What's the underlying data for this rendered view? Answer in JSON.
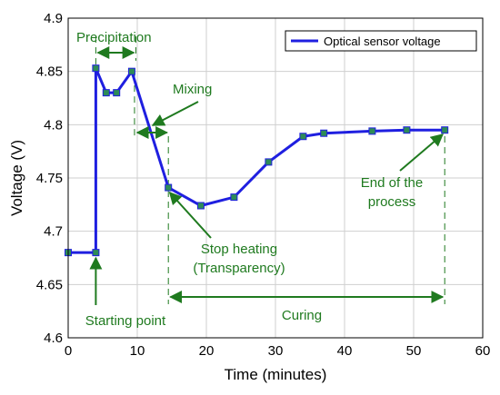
{
  "chart_data": {
    "type": "line",
    "xlabel": "Time (minutes)",
    "ylabel": "Voltage (V)",
    "xlim": [
      0,
      60
    ],
    "ylim": [
      4.6,
      4.9
    ],
    "x_ticks": [
      0,
      10,
      20,
      30,
      40,
      50,
      60
    ],
    "y_ticks": [
      4.6,
      4.65,
      4.7,
      4.75,
      4.8,
      4.85,
      4.9
    ],
    "x_tick_labels": [
      "0",
      "10",
      "20",
      "30",
      "40",
      "50",
      "60"
    ],
    "y_tick_labels": [
      "4.6",
      "4.65",
      "4.7",
      "4.75",
      "4.8",
      "4.85",
      "4.9"
    ],
    "grid": true,
    "legend_position": "top-right",
    "series": [
      {
        "name": "Optical sensor voltage",
        "color": "#1f1fe0",
        "marker_color": "#2e8b57",
        "x": [
          0,
          4,
          4,
          5.5,
          7,
          9.2,
          14.5,
          19.2,
          24,
          29,
          34,
          37,
          44,
          49,
          54.5
        ],
        "y": [
          4.68,
          4.68,
          4.853,
          4.83,
          4.83,
          4.85,
          4.741,
          4.724,
          4.732,
          4.765,
          4.789,
          4.792,
          4.794,
          4.795,
          4.795
        ]
      }
    ],
    "annotations": [
      {
        "id": "precipitation",
        "text": "Precipitation"
      },
      {
        "id": "mixing",
        "text": "Mixing"
      },
      {
        "id": "end-line1",
        "text": "End of the"
      },
      {
        "id": "end-line2",
        "text": "process"
      },
      {
        "id": "stop-line1",
        "text": "Stop heating"
      },
      {
        "id": "stop-line2",
        "text": "(Transparency)"
      },
      {
        "id": "starting",
        "text": "Starting point"
      },
      {
        "id": "curing",
        "text": "Curing"
      }
    ],
    "annotation_color": "#1f7a1f"
  }
}
